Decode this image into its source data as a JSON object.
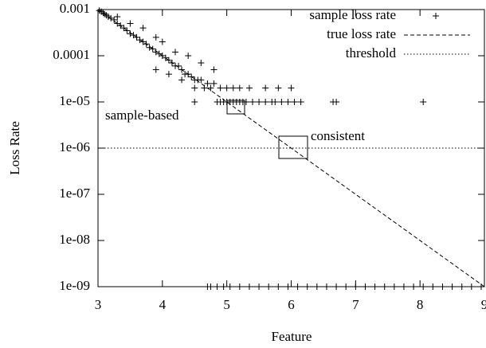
{
  "chart_data": {
    "type": "scatter",
    "x_label": "Feature",
    "y_label": "Loss Rate",
    "log_y": true,
    "xlim": [
      3,
      9
    ],
    "xticks": [
      3,
      4,
      5,
      6,
      7,
      8,
      9
    ],
    "ylim": [
      1e-09,
      0.001
    ],
    "yticks": [
      0.001,
      0.0001,
      {
        "value": 1e-05,
        "label": "1e-05"
      },
      {
        "value": 1e-06,
        "label": "1e-06"
      },
      {
        "value": 1e-07,
        "label": "1e-07"
      },
      {
        "value": 1e-08,
        "label": "1e-08"
      },
      {
        "value": 1e-09,
        "label": "1e-09"
      }
    ],
    "legend": "top-right",
    "series": [
      {
        "name": "sample loss rate",
        "style": "points",
        "color": "#000000",
        "x": [
          3.02,
          3.05,
          3.08,
          3.1,
          3.13,
          3.16,
          3.2,
          3.25,
          3.3,
          3.35,
          3.4,
          3.45,
          3.5,
          3.55,
          3.6,
          3.65,
          3.7,
          3.75,
          3.8,
          3.85,
          3.9,
          3.95,
          4.0,
          4.05,
          4.1,
          4.15,
          4.2,
          4.25,
          4.3,
          4.35,
          4.4,
          4.45,
          4.5,
          4.55,
          4.6,
          4.7,
          4.8,
          4.9,
          5.0,
          3.3,
          3.5,
          3.7,
          3.9,
          4.0,
          4.2,
          4.4,
          4.6,
          4.8,
          4.1,
          3.9,
          4.3,
          5.2,
          5.35,
          5.6,
          5.8,
          6.0,
          4.5,
          4.65,
          4.75,
          5.1,
          4.5,
          4.85,
          4.9,
          4.95,
          5.0,
          5.05,
          5.1,
          5.15,
          5.2,
          5.25,
          5.3,
          5.4,
          5.5,
          5.6,
          5.7,
          5.75,
          5.85,
          5.95,
          6.05,
          6.15,
          6.65,
          6.7,
          8.05,
          4.7,
          4.75,
          4.85,
          4.95,
          5.05,
          5.2,
          5.35,
          5.5,
          5.65,
          5.8,
          5.95,
          6.1,
          6.25,
          6.4,
          6.55,
          6.7,
          6.85,
          7.0,
          7.15,
          7.3,
          7.45,
          7.6,
          7.75,
          7.9,
          8.05,
          8.2,
          8.35,
          8.5,
          8.65,
          8.8,
          8.95
        ],
        "values": [
          0.00095,
          0.0009,
          0.00085,
          0.0008,
          0.00075,
          0.0007,
          0.00065,
          0.0006,
          0.0005,
          0.00045,
          0.0004,
          0.00035,
          0.0003,
          0.00028,
          0.00025,
          0.00022,
          0.0002,
          0.00018,
          0.00015,
          0.00014,
          0.00012,
          0.00011,
          0.0001,
          9e-05,
          8e-05,
          7e-05,
          6e-05,
          6e-05,
          5e-05,
          4e-05,
          4e-05,
          3.5e-05,
          3e-05,
          3e-05,
          3e-05,
          2.5e-05,
          2.5e-05,
          2e-05,
          2e-05,
          0.0007,
          0.0005,
          0.0004,
          0.00025,
          0.0002,
          0.00012,
          0.0001,
          7e-05,
          5e-05,
          4e-05,
          5e-05,
          3e-05,
          2e-05,
          2e-05,
          2e-05,
          2e-05,
          2e-05,
          2e-05,
          2e-05,
          2e-05,
          2e-05,
          1e-05,
          1e-05,
          1e-05,
          1e-05,
          1e-05,
          1e-05,
          1e-05,
          1e-05,
          1e-05,
          1e-05,
          1e-05,
          1e-05,
          1e-05,
          1e-05,
          1e-05,
          1e-05,
          1e-05,
          1e-05,
          1e-05,
          1e-05,
          1e-05,
          1e-05,
          1e-05,
          1e-09,
          1e-09,
          1e-09,
          1e-09,
          1e-09,
          1e-09,
          1e-09,
          1e-09,
          1e-09,
          1e-09,
          1e-09,
          1e-09,
          1e-09,
          1e-09,
          1e-09,
          1e-09,
          1e-09,
          1e-09,
          1e-09,
          1e-09,
          1e-09,
          1e-09,
          1e-09,
          1e-09,
          1e-09,
          1e-09,
          1e-09,
          1e-09,
          1e-09,
          1e-09,
          1e-09
        ]
      },
      {
        "name": "true loss rate",
        "style": "dashed",
        "color": "#000000",
        "x": [
          3,
          9
        ],
        "values": [
          0.001,
          1e-09
        ]
      },
      {
        "name": "threshold",
        "style": "dotted",
        "color": "#000000",
        "x": [
          3,
          9
        ],
        "values": [
          1e-06,
          1e-06
        ]
      }
    ],
    "annotations": [
      "sample-based",
      "consistent"
    ]
  }
}
